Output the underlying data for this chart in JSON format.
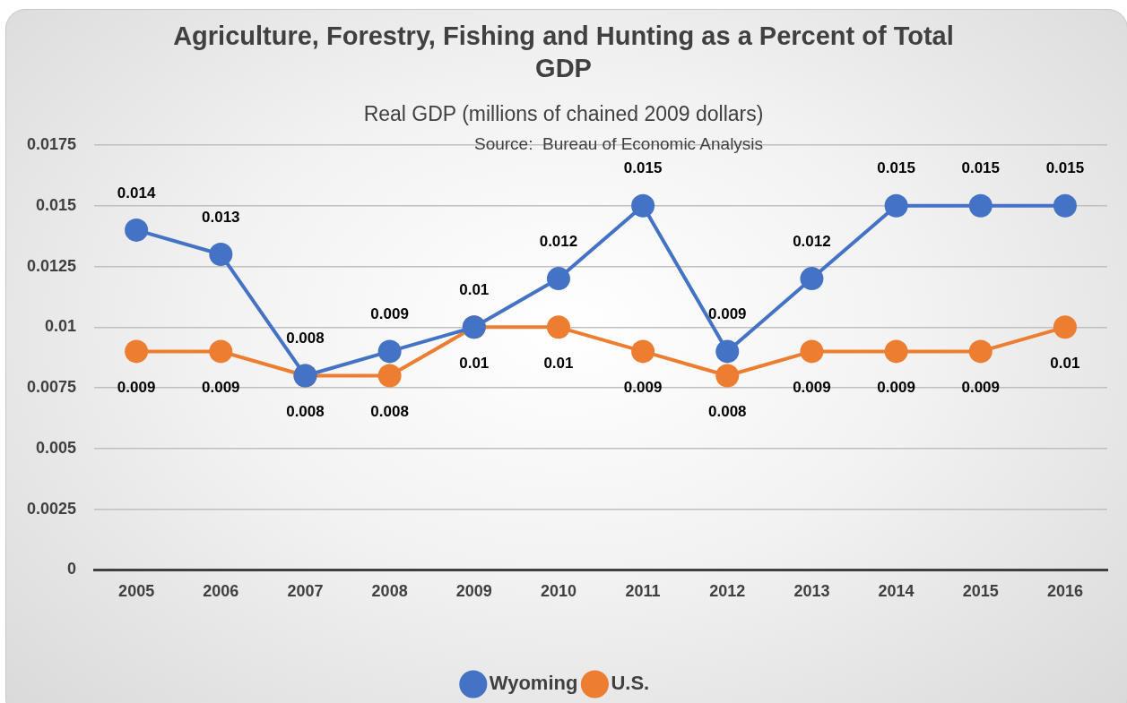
{
  "chart_data": {
    "type": "line",
    "title": "Agriculture, Forestry, Fishing and Hunting as a Percent of Total GDP",
    "subtitle": "Real GDP (millions of chained 2009 dollars)",
    "annotations": [
      "Source:  Bureau of Economic Analysis"
    ],
    "categories": [
      "2005",
      "2006",
      "2007",
      "2008",
      "2009",
      "2010",
      "2011",
      "2012",
      "2013",
      "2014",
      "2015",
      "2016"
    ],
    "series": [
      {
        "name": "Wyoming",
        "color": "#4472c4",
        "values": [
          0.014,
          0.013,
          0.008,
          0.009,
          0.01,
          0.012,
          0.015,
          0.009,
          0.012,
          0.015,
          0.015,
          0.015
        ]
      },
      {
        "name": "U.S.",
        "color": "#ed7d31",
        "values": [
          0.009,
          0.009,
          0.008,
          0.008,
          0.01,
          0.01,
          0.009,
          0.008,
          0.009,
          0.009,
          0.009,
          0.01
        ]
      }
    ],
    "ylim": [
      0,
      0.0175
    ],
    "yticks": [
      0,
      0.0025,
      0.005,
      0.0075,
      0.01,
      0.0125,
      0.015,
      0.0175
    ],
    "grid": "y",
    "legend": "bottom",
    "marker": "circle",
    "line_style": "solid",
    "data_labels": true
  }
}
